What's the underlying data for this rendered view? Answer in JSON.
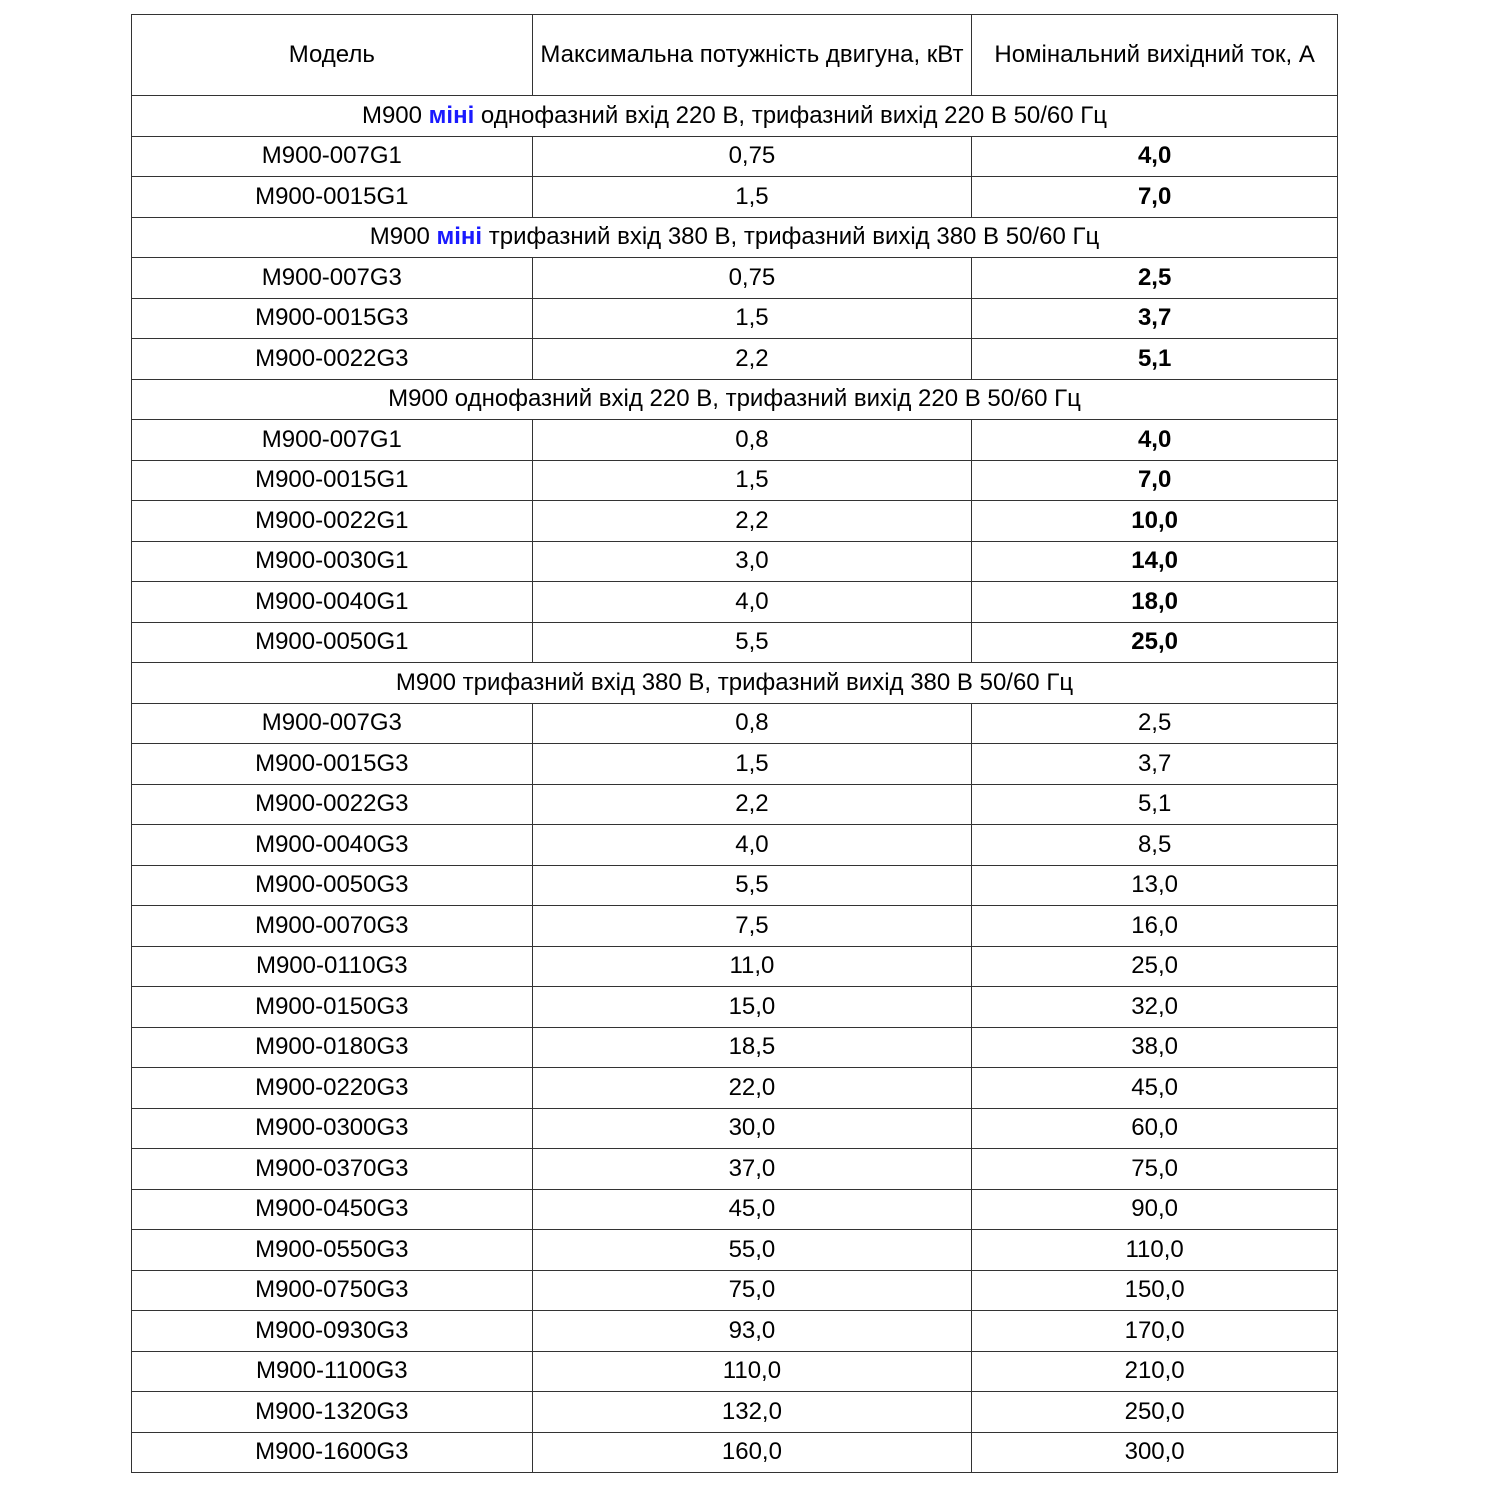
{
  "header": {
    "model": "Модель",
    "power": "Максимальна потужність двигуна, кВт",
    "current": "Номінальний вихідний ток, А"
  },
  "colors": {
    "highlight": "#1a1aff",
    "border": "#333333"
  },
  "sections": [
    {
      "prefix": "M900 ",
      "highlight": "міні",
      "suffix": " однофазний вхід 220 В, трифазний вихід 220 В 50/60 Гц",
      "current_bold": true,
      "rows": [
        [
          "M900-007G1",
          "0,75",
          "4,0"
        ],
        [
          "M900-0015G1",
          "1,5",
          "7,0"
        ]
      ]
    },
    {
      "prefix": "M900 ",
      "highlight": "міні",
      "suffix": " трифазний вхід 380 В, трифазний вихід 380 В 50/60 Гц",
      "current_bold": true,
      "rows": [
        [
          "M900-007G3",
          "0,75",
          "2,5"
        ],
        [
          "M900-0015G3",
          "1,5",
          "3,7"
        ],
        [
          "M900-0022G3",
          "2,2",
          "5,1"
        ]
      ]
    },
    {
      "prefix": "M900 однофазний вхід 220 В, трифазний вихід 220 В 50/60 Гц",
      "highlight": "",
      "suffix": "",
      "current_bold": true,
      "rows": [
        [
          "M900-007G1",
          "0,8",
          "4,0"
        ],
        [
          "M900-0015G1",
          "1,5",
          "7,0"
        ],
        [
          "M900-0022G1",
          "2,2",
          "10,0"
        ],
        [
          "M900-0030G1",
          "3,0",
          "14,0"
        ],
        [
          "M900-0040G1",
          "4,0",
          "18,0"
        ],
        [
          "M900-0050G1",
          "5,5",
          "25,0"
        ]
      ]
    },
    {
      "prefix": "M900 трифазний вхід 380 В, трифазний вихід 380 В 50/60 Гц",
      "highlight": "",
      "suffix": "",
      "current_bold": false,
      "rows": [
        [
          "M900-007G3",
          "0,8",
          "2,5"
        ],
        [
          "M900-0015G3",
          "1,5",
          "3,7"
        ],
        [
          "M900-0022G3",
          "2,2",
          "5,1"
        ],
        [
          "M900-0040G3",
          "4,0",
          "8,5"
        ],
        [
          "M900-0050G3",
          "5,5",
          "13,0"
        ],
        [
          "M900-0070G3",
          "7,5",
          "16,0"
        ],
        [
          "M900-0110G3",
          "11,0",
          "25,0"
        ],
        [
          "M900-0150G3",
          "15,0",
          "32,0"
        ],
        [
          "M900-0180G3",
          "18,5",
          "38,0"
        ],
        [
          "M900-0220G3",
          "22,0",
          "45,0"
        ],
        [
          "M900-0300G3",
          "30,0",
          "60,0"
        ],
        [
          "M900-0370G3",
          "37,0",
          "75,0"
        ],
        [
          "M900-0450G3",
          "45,0",
          "90,0"
        ],
        [
          "M900-0550G3",
          "55,0",
          "110,0"
        ],
        [
          "M900-0750G3",
          "75,0",
          "150,0"
        ],
        [
          "M900-0930G3",
          "93,0",
          "170,0"
        ],
        [
          "M900-1100G3",
          "110,0",
          "210,0"
        ],
        [
          "M900-1320G3",
          "132,0",
          "250,0"
        ],
        [
          "M900-1600G3",
          "160,0",
          "300,0"
        ]
      ]
    }
  ]
}
